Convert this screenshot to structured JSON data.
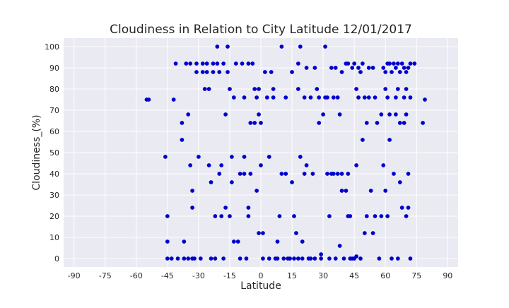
{
  "chart_data": {
    "type": "scatter",
    "title": "Cloudiness in Relation to City Latitude 12/01/2017",
    "xlabel": "Latitude",
    "ylabel": "Cloudiness_(%)",
    "xlim": [
      -95,
      95
    ],
    "ylim": [
      -4,
      104
    ],
    "xticks": [
      -90,
      -75,
      -60,
      -45,
      -30,
      -15,
      0,
      15,
      30,
      45,
      60,
      75,
      90
    ],
    "yticks": [
      0,
      10,
      20,
      30,
      40,
      50,
      60,
      70,
      80,
      90,
      100
    ],
    "grid": true,
    "marker_color": "#0000cd",
    "plot_bg": "#eaeaf2",
    "grid_color": "#ffffff",
    "points": [
      [
        -55,
        75
      ],
      [
        -54,
        75
      ],
      [
        -46,
        48
      ],
      [
        -45,
        20
      ],
      [
        -45,
        8
      ],
      [
        -45,
        0
      ],
      [
        -43,
        0
      ],
      [
        -42,
        75
      ],
      [
        -41,
        92
      ],
      [
        -40,
        0
      ],
      [
        -38,
        56
      ],
      [
        -38,
        64
      ],
      [
        -37,
        8
      ],
      [
        -37,
        0
      ],
      [
        -36,
        92
      ],
      [
        -35,
        68
      ],
      [
        -35,
        0
      ],
      [
        -34,
        92
      ],
      [
        -34,
        44
      ],
      [
        -33,
        32
      ],
      [
        -33,
        24
      ],
      [
        -33,
        0
      ],
      [
        -32,
        0
      ],
      [
        -31,
        92
      ],
      [
        -31,
        88
      ],
      [
        -30,
        48
      ],
      [
        -29,
        0
      ],
      [
        -28,
        92
      ],
      [
        -28,
        88
      ],
      [
        -27,
        80
      ],
      [
        -26,
        92
      ],
      [
        -26,
        88
      ],
      [
        -25,
        80
      ],
      [
        -25,
        44
      ],
      [
        -24,
        36
      ],
      [
        -24,
        0
      ],
      [
        -23,
        92
      ],
      [
        -23,
        88
      ],
      [
        -22,
        20
      ],
      [
        -22,
        0
      ],
      [
        -21,
        100
      ],
      [
        -21,
        92
      ],
      [
        -20,
        88
      ],
      [
        -20,
        40
      ],
      [
        -19,
        44
      ],
      [
        -19,
        20
      ],
      [
        -18,
        92
      ],
      [
        -18,
        0
      ],
      [
        -17,
        68
      ],
      [
        -17,
        24
      ],
      [
        -16,
        100
      ],
      [
        -16,
        88
      ],
      [
        -15,
        80
      ],
      [
        -15,
        20
      ],
      [
        -14,
        48
      ],
      [
        -14,
        36
      ],
      [
        -13,
        76
      ],
      [
        -13,
        8
      ],
      [
        -12,
        92
      ],
      [
        -11,
        8
      ],
      [
        -10,
        40
      ],
      [
        -10,
        0
      ],
      [
        -9,
        92
      ],
      [
        -8,
        76
      ],
      [
        -8,
        48
      ],
      [
        -8,
        40
      ],
      [
        -7,
        0
      ],
      [
        -6,
        92
      ],
      [
        -6,
        24
      ],
      [
        -6,
        20
      ],
      [
        -5,
        64
      ],
      [
        -5,
        40
      ],
      [
        -4,
        92
      ],
      [
        -3,
        80
      ],
      [
        -3,
        64
      ],
      [
        -2,
        76
      ],
      [
        -2,
        32
      ],
      [
        -1,
        80
      ],
      [
        -1,
        68
      ],
      [
        -1,
        12
      ],
      [
        0,
        64
      ],
      [
        0,
        44
      ],
      [
        1,
        12
      ],
      [
        1,
        0
      ],
      [
        2,
        88
      ],
      [
        3,
        76
      ],
      [
        4,
        48
      ],
      [
        4,
        0
      ],
      [
        5,
        88
      ],
      [
        6,
        80
      ],
      [
        6,
        76
      ],
      [
        7,
        0
      ],
      [
        8,
        8
      ],
      [
        8,
        0
      ],
      [
        9,
        20
      ],
      [
        10,
        100
      ],
      [
        10,
        40
      ],
      [
        11,
        0
      ],
      [
        12,
        40
      ],
      [
        12,
        76
      ],
      [
        13,
        0
      ],
      [
        14,
        0
      ],
      [
        15,
        88
      ],
      [
        15,
        36
      ],
      [
        16,
        20
      ],
      [
        16,
        0
      ],
      [
        17,
        12
      ],
      [
        18,
        92
      ],
      [
        18,
        80
      ],
      [
        18,
        0
      ],
      [
        19,
        100
      ],
      [
        19,
        48
      ],
      [
        20,
        8
      ],
      [
        20,
        0
      ],
      [
        21,
        76
      ],
      [
        21,
        40
      ],
      [
        22,
        90
      ],
      [
        22,
        44
      ],
      [
        23,
        0
      ],
      [
        24,
        76
      ],
      [
        24,
        0
      ],
      [
        25,
        40
      ],
      [
        26,
        90
      ],
      [
        26,
        0
      ],
      [
        27,
        80
      ],
      [
        28,
        76
      ],
      [
        28,
        64
      ],
      [
        29,
        2
      ],
      [
        29,
        0
      ],
      [
        30,
        68
      ],
      [
        31,
        100
      ],
      [
        31,
        76
      ],
      [
        32,
        76
      ],
      [
        32,
        40
      ],
      [
        33,
        20
      ],
      [
        33,
        0
      ],
      [
        34,
        90
      ],
      [
        34,
        40
      ],
      [
        35,
        76
      ],
      [
        35,
        40
      ],
      [
        36,
        90
      ],
      [
        36,
        0
      ],
      [
        37,
        76
      ],
      [
        37,
        40
      ],
      [
        38,
        68
      ],
      [
        38,
        6
      ],
      [
        39,
        88
      ],
      [
        39,
        40
      ],
      [
        39,
        32
      ],
      [
        40,
        0
      ],
      [
        41,
        92
      ],
      [
        41,
        32
      ],
      [
        42,
        92
      ],
      [
        42,
        20
      ],
      [
        42,
        40
      ],
      [
        43,
        20
      ],
      [
        43,
        0
      ],
      [
        44,
        90
      ],
      [
        44,
        0
      ],
      [
        45,
        92
      ],
      [
        45,
        0
      ],
      [
        46,
        80
      ],
      [
        46,
        44
      ],
      [
        46,
        1
      ],
      [
        47,
        90
      ],
      [
        47,
        76
      ],
      [
        48,
        88
      ],
      [
        48,
        0
      ],
      [
        49,
        56
      ],
      [
        49,
        92
      ],
      [
        50,
        76
      ],
      [
        50,
        12
      ],
      [
        51,
        64
      ],
      [
        51,
        20
      ],
      [
        52,
        90
      ],
      [
        52,
        76
      ],
      [
        53,
        32
      ],
      [
        54,
        90
      ],
      [
        54,
        12
      ],
      [
        55,
        76
      ],
      [
        55,
        20
      ],
      [
        56,
        64
      ],
      [
        57,
        0
      ],
      [
        58,
        68
      ],
      [
        58,
        20
      ],
      [
        59,
        90
      ],
      [
        59,
        44
      ],
      [
        60,
        88
      ],
      [
        60,
        80
      ],
      [
        60,
        32
      ],
      [
        61,
        92
      ],
      [
        61,
        76
      ],
      [
        61,
        20
      ],
      [
        62,
        92
      ],
      [
        62,
        68
      ],
      [
        62,
        56
      ],
      [
        63,
        88
      ],
      [
        63,
        0
      ],
      [
        64,
        92
      ],
      [
        64,
        40
      ],
      [
        65,
        90
      ],
      [
        65,
        76
      ],
      [
        65,
        68
      ],
      [
        66,
        92
      ],
      [
        66,
        80
      ],
      [
        66,
        0
      ],
      [
        67,
        88
      ],
      [
        67,
        64
      ],
      [
        67,
        36
      ],
      [
        68,
        92
      ],
      [
        68,
        24
      ],
      [
        69,
        90
      ],
      [
        69,
        76
      ],
      [
        69,
        64
      ],
      [
        70,
        88
      ],
      [
        70,
        80
      ],
      [
        70,
        68
      ],
      [
        70,
        20
      ],
      [
        71,
        90
      ],
      [
        71,
        40
      ],
      [
        71,
        24
      ],
      [
        72,
        92
      ],
      [
        72,
        76
      ],
      [
        72,
        0
      ],
      [
        74,
        92
      ],
      [
        78,
        64
      ],
      [
        79,
        75
      ]
    ]
  }
}
